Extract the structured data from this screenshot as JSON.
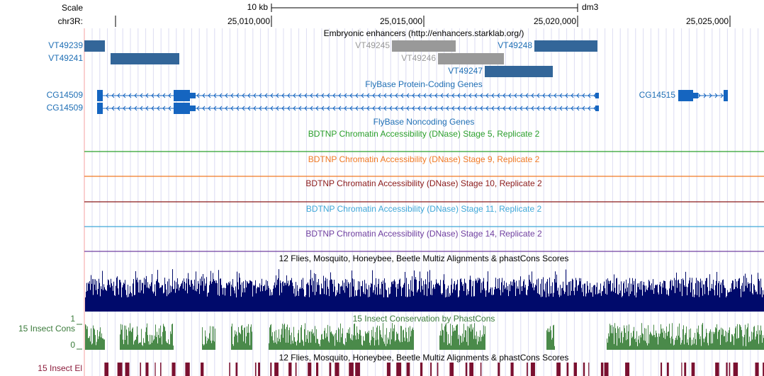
{
  "scale": {
    "label": "Scale",
    "size": "10 kb",
    "assembly": "dm3"
  },
  "position": {
    "label": "chr3R:",
    "ticks": [
      "25,010,000",
      "25,015,000",
      "25,020,000",
      "25,025,000"
    ]
  },
  "tracks": {
    "enhancers": {
      "title": "Embryonic enhancers (http://enhancers.starklab.org/)",
      "items": [
        "VT49239",
        "VT49241",
        "VT49245",
        "VT49246",
        "VT49247",
        "VT49248"
      ]
    },
    "protein_coding": {
      "title": "FlyBase Protein-Coding Genes",
      "genes": [
        "CG14509",
        "CG14509",
        "CG14515"
      ]
    },
    "noncoding": {
      "title": "FlyBase Noncoding Genes"
    },
    "dnase": [
      "BDTNP Chromatin Accessibility (DNase) Stage 5, Replicate 2",
      "BDTNP Chromatin Accessibility (DNase) Stage 9, Replicate 2",
      "BDTNP Chromatin Accessibility (DNase) Stage 10, Replicate 2",
      "BDTNP Chromatin Accessibility (DNase) Stage 11, Replicate 2",
      "BDTNP Chromatin Accessibility (DNase) Stage 14, Replicate 2"
    ],
    "multiz": {
      "title": "12 Flies, Mosquito, Honeybee, Beetle Multiz Alignments & phastCons Scores"
    },
    "phastcons": {
      "title": "15 Insect Conservation by PhastCons",
      "label": "15 Insect Cons",
      "max": 1,
      "min": 0
    },
    "elements": {
      "title": "12 Flies, Mosquito, Honeybee, Beetle Multiz Alignments & phastCons Scores",
      "label": "15 Insect El"
    }
  }
}
